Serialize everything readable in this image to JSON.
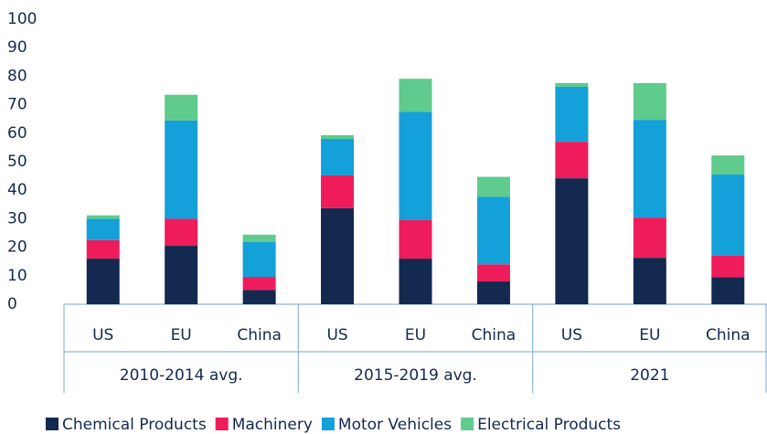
{
  "chart_data": {
    "type": "stacked_bar",
    "categories": [
      "US",
      "EU",
      "China",
      "US",
      "EU",
      "China",
      "US",
      "EU",
      "China"
    ],
    "groups": [
      "2010-2014 avg.",
      "2015-2019 avg.",
      "2021"
    ],
    "series": [
      {
        "name": "Chemical Products",
        "color": "#13294f",
        "values": [
          16,
          20.5,
          5,
          33.7,
          16,
          8,
          44.2,
          16.3,
          9.5
        ]
      },
      {
        "name": "Machinery",
        "color": "#ee1c5b",
        "values": [
          6.5,
          9.5,
          4.6,
          11.5,
          13.5,
          6,
          12.8,
          14.1,
          7.5
        ]
      },
      {
        "name": "Motor Vehicles",
        "color": "#14a0d8",
        "values": [
          7.5,
          34.5,
          12.2,
          12.8,
          38,
          23.7,
          19.3,
          34.3,
          28.5
        ]
      },
      {
        "name": "Electrical Products",
        "color": "#5fcb8c",
        "values": [
          1.2,
          9,
          2.6,
          1.3,
          11.6,
          7,
          1.3,
          12.9,
          6.7
        ]
      }
    ],
    "ylim": [
      0,
      100
    ],
    "yticks": [
      0,
      10,
      20,
      30,
      40,
      50,
      60,
      70,
      80,
      90,
      100
    ]
  }
}
